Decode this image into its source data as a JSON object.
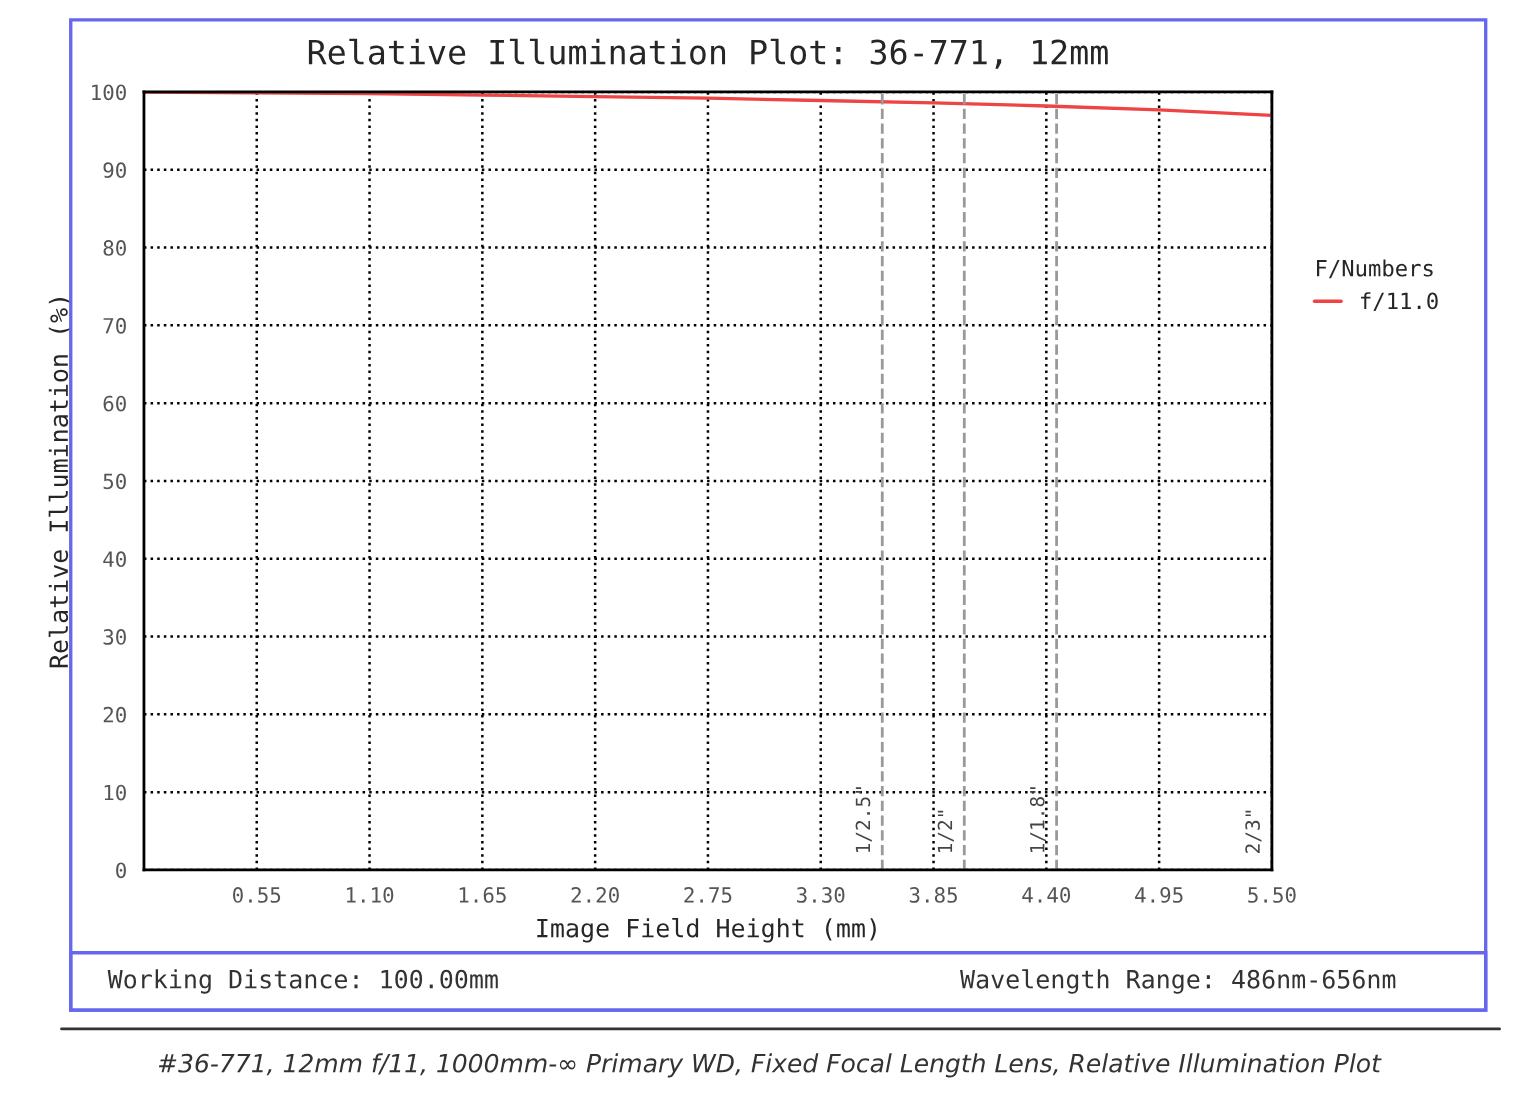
{
  "chart_data": {
    "type": "line",
    "title": "Relative Illumination Plot: 36-771, 12mm",
    "xlabel": "Image Field Height (mm)",
    "ylabel": "Relative Illumination (%)",
    "legend_title": "F/Numbers",
    "x": [
      0,
      0.55,
      1.1,
      1.65,
      2.2,
      2.75,
      3.3,
      3.85,
      4.4,
      4.95,
      5.5
    ],
    "series": [
      {
        "name": "f/11.0",
        "color": "#ee4444",
        "values": [
          100,
          99.9,
          99.8,
          99.6,
          99.4,
          99.2,
          98.9,
          98.6,
          98.2,
          97.7,
          97.0
        ]
      }
    ],
    "xlim": [
      0,
      5.5
    ],
    "ylim": [
      0,
      100
    ],
    "xticks": [
      {
        "value": 0.55,
        "label": "0.55"
      },
      {
        "value": 1.1,
        "label": "1.10"
      },
      {
        "value": 1.65,
        "label": "1.65"
      },
      {
        "value": 2.2,
        "label": "2.20"
      },
      {
        "value": 2.75,
        "label": "2.75"
      },
      {
        "value": 3.3,
        "label": "3.30"
      },
      {
        "value": 3.85,
        "label": "3.85"
      },
      {
        "value": 4.4,
        "label": "4.40"
      },
      {
        "value": 4.95,
        "label": "4.95"
      },
      {
        "value": 5.5,
        "label": "5.50"
      }
    ],
    "yticks": [
      0,
      10,
      20,
      30,
      40,
      50,
      60,
      70,
      80,
      90,
      100
    ],
    "ref_lines": [
      {
        "axis": "x",
        "value": 3.6,
        "color": "#999999",
        "line_style": "dashed"
      },
      {
        "axis": "x",
        "value": 4.0,
        "color": "#999999",
        "line_style": "dashed"
      },
      {
        "axis": "x",
        "value": 4.45,
        "color": "#999999",
        "line_style": "dashed"
      },
      {
        "axis": "x",
        "value": 5.5,
        "color": "#999999",
        "line_style": "dashed"
      }
    ],
    "annotations": [
      "Working Distance: 100.00mm",
      "Wavelength Range: 486nm-656nm",
      "#36-771, 12mm f/11, 1000mm-∞ Primary WD, Fixed Focal Length Lens, Relative Illumination Plot",
      {
        "text": "1/2.5\"",
        "x": 3.6,
        "y": 2
      },
      {
        "text": "1/2\"",
        "x": 4.0,
        "y": 2
      },
      {
        "text": "1/1.8\"",
        "x": 4.45,
        "y": 2
      },
      {
        "text": "2/3\"",
        "x": 5.5,
        "y": 2
      }
    ],
    "grid": true,
    "legend": "right",
    "marker": "none",
    "line_style": "solid"
  }
}
